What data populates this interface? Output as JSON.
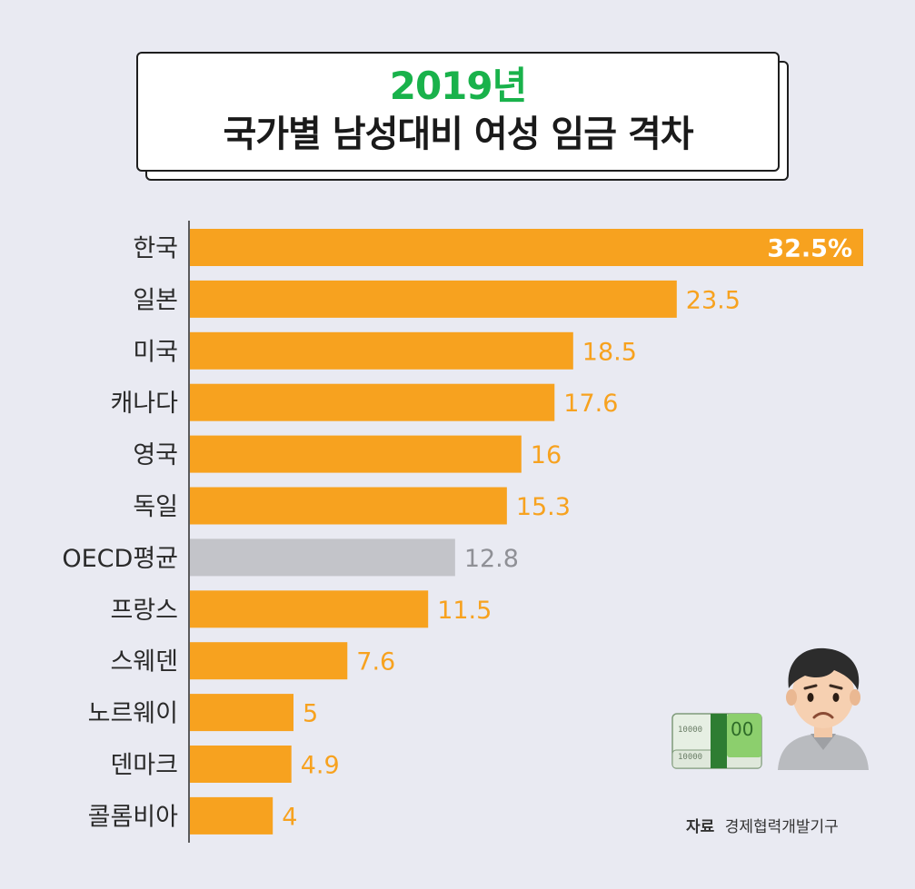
{
  "title": {
    "year": "2019년",
    "main": "국가별 남성대비 여성 임금 격차"
  },
  "colors": {
    "background": "#e9eaf2",
    "bar": "#f7a21f",
    "bar_highlight_label": "#ffffff",
    "bar_oecd": "#c3c4c9",
    "label_oecd": "#8f9096",
    "title_year": "#19b24b"
  },
  "chart_data": {
    "type": "bar",
    "orientation": "horizontal",
    "title": "2019년 국가별 남성대비 여성 임금 격차",
    "categories": [
      "한국",
      "일본",
      "미국",
      "캐나다",
      "영국",
      "독일",
      "OECD평균",
      "프랑스",
      "스웨덴",
      "노르웨이",
      "덴마크",
      "콜롬비아"
    ],
    "values": [
      32.5,
      23.5,
      18.5,
      17.6,
      16,
      15.3,
      12.8,
      11.5,
      7.6,
      5,
      4.9,
      4
    ],
    "value_labels": [
      "32.5%",
      "23.5",
      "18.5",
      "17.6",
      "16",
      "15.3",
      "12.8",
      "11.5",
      "7.6",
      "5",
      "4.9",
      "4"
    ],
    "unit": "%",
    "xlim": [
      0,
      32.5
    ],
    "highlight_category": "OECD평균",
    "grid": false
  },
  "icons": {
    "money": "money-stack-icon",
    "person": "worried-person-icon",
    "money_text_a": "10000",
    "money_text_b": "10000",
    "money_text_c": "00"
  },
  "source": {
    "label": "자료",
    "text": "경제협력개발기구"
  }
}
